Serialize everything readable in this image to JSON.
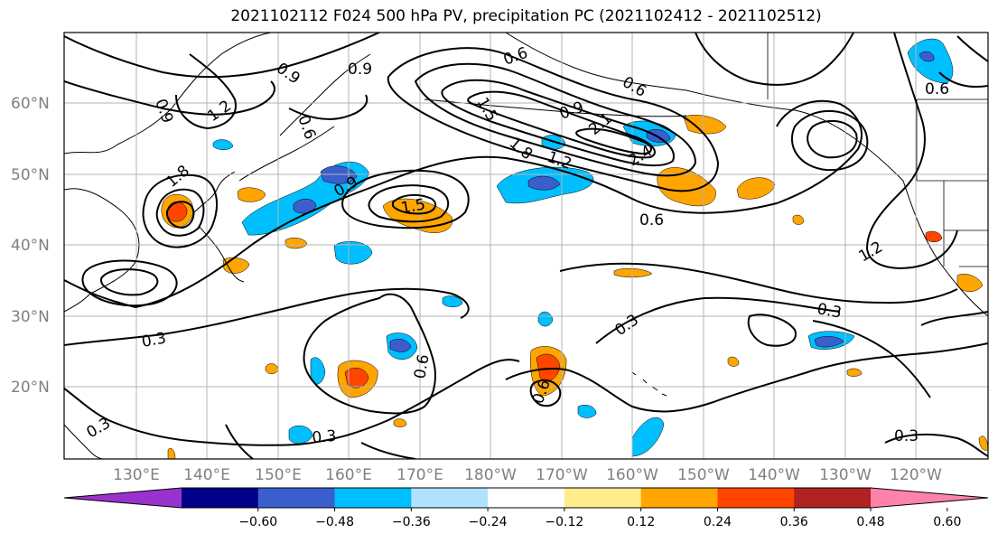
{
  "title": "2021102112 F024 500 hPa PV, precipitation PC (2021102412 - 2021102512)",
  "lat_labels": [
    "60°N",
    "50°N",
    "40°N",
    "30°N",
    "20°N"
  ],
  "lon_labels": [
    "130°E",
    "140°E",
    "150°E",
    "160°E",
    "170°E",
    "180°W",
    "170°W",
    "160°W",
    "150°W",
    "140°W",
    "130°W",
    "120°W"
  ],
  "colorbar": {
    "colors": [
      "#9932cc",
      "#00008b",
      "#3a5fcd",
      "#00bfff",
      "#b0e2ff",
      "#ffffff",
      "#ffec8b",
      "#ffa500",
      "#ff4500",
      "#b22222",
      "#ff82ab"
    ],
    "tick_labels": [
      "−0.60",
      "−0.48",
      "−0.36",
      "−0.24",
      "−0.12",
      "0.12",
      "0.24",
      "0.36",
      "0.48",
      "0.60"
    ]
  },
  "contour_labels": [
    "0.9",
    "0.9",
    "0.6",
    "1.2",
    "0.9",
    "0.6",
    "0.9",
    "1.5",
    "0.6",
    "0.9",
    "1.8",
    "2.1",
    "2.4",
    "1.2",
    "0.6",
    "1.5",
    "1.8",
    "0.3",
    "0.6",
    "1.2",
    "0.3",
    "0.3",
    "0.3",
    "0.6",
    "0.6",
    "0.3",
    "0.3"
  ],
  "precip_colors": {
    "positive_light": "#ffec8b",
    "positive_mid": "#ffa500",
    "positive_high": "#ff4500",
    "negative_light": "#b0e2ff",
    "negative_mid": "#00bfff",
    "negative_high": "#3a5fcd"
  }
}
